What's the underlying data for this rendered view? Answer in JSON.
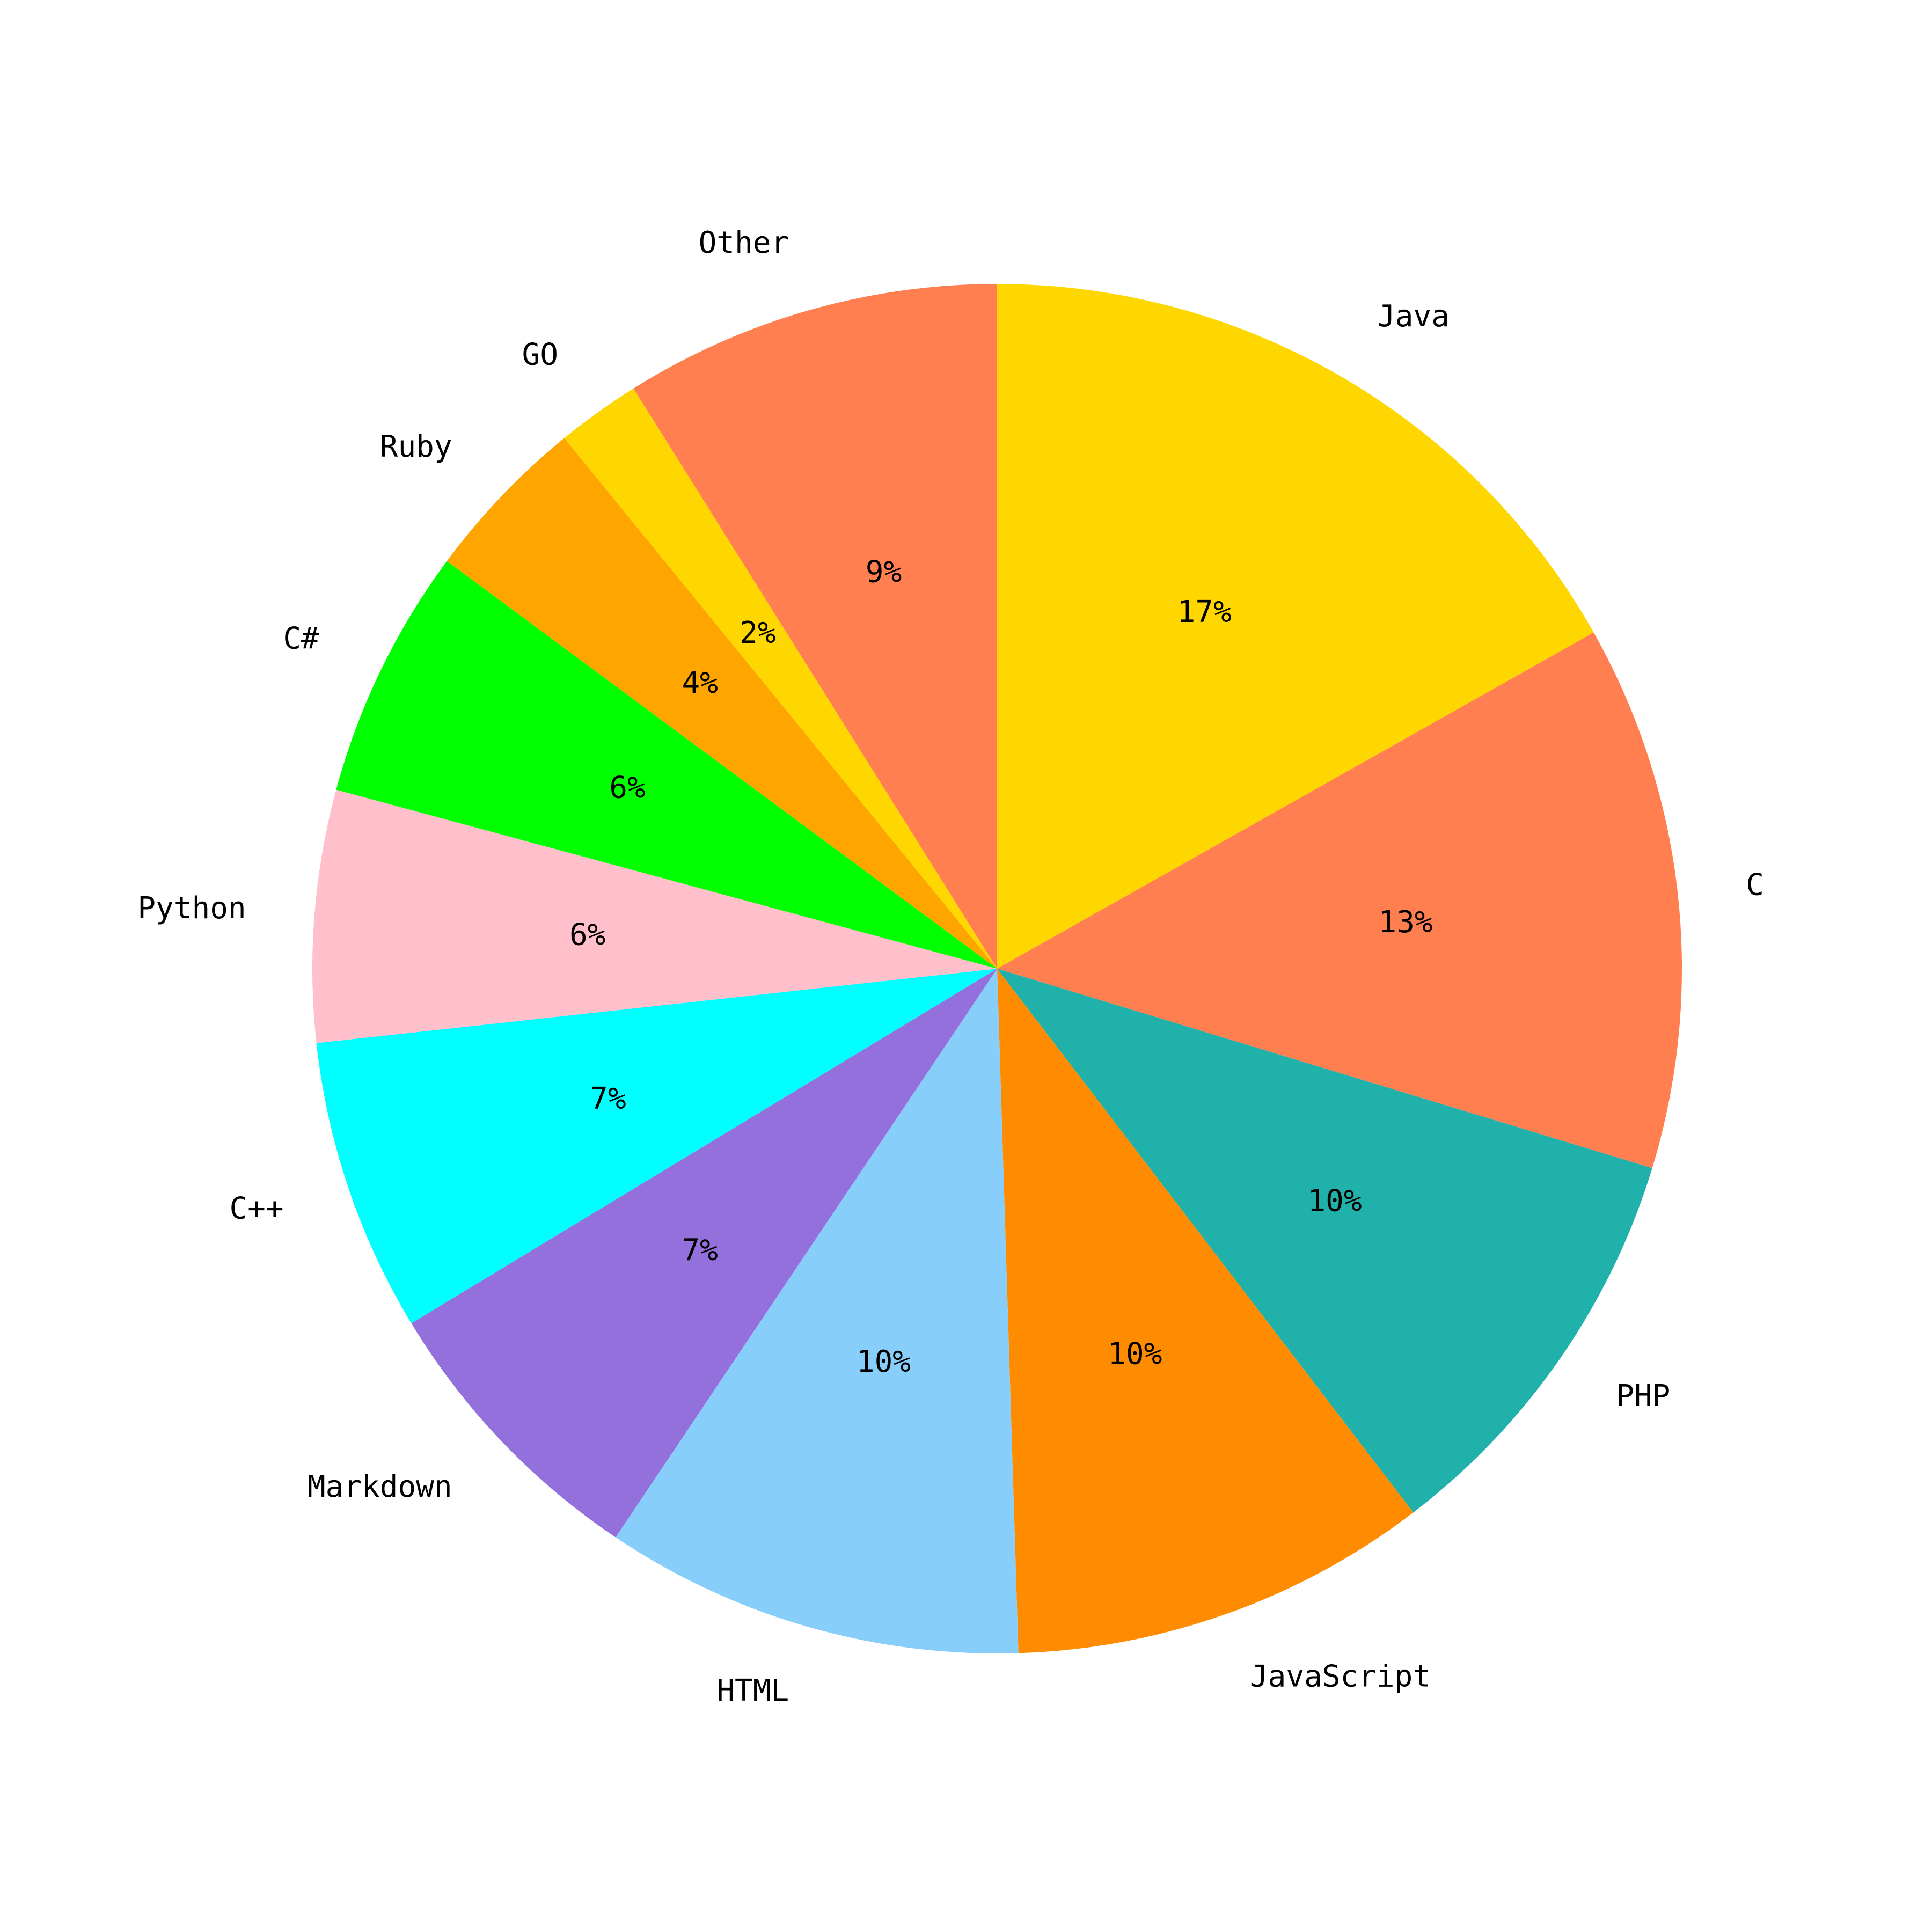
{
  "chart_data": {
    "type": "pie",
    "categories": [
      "Java",
      "C",
      "PHP",
      "JavaScript",
      "HTML",
      "Markdown",
      "C++",
      "Python",
      "C#",
      "Ruby",
      "GO",
      "Other"
    ],
    "values": [
      17,
      13,
      10,
      10,
      10,
      7,
      7,
      6,
      6,
      4,
      2,
      9
    ],
    "value_labels": [
      "17%",
      "13%",
      "10%",
      "10%",
      "10%",
      "7%",
      "7%",
      "6%",
      "6%",
      "4%",
      "2%",
      "9%"
    ],
    "colors": [
      "#FFD700",
      "#FF7F50",
      "#20B2AA",
      "#FF8C00",
      "#87CEFA",
      "#9370DB",
      "#00FFFF",
      "#FFC0CB",
      "#00FF00",
      "#FFA500",
      "#FFD700",
      "#FF7F50"
    ]
  }
}
